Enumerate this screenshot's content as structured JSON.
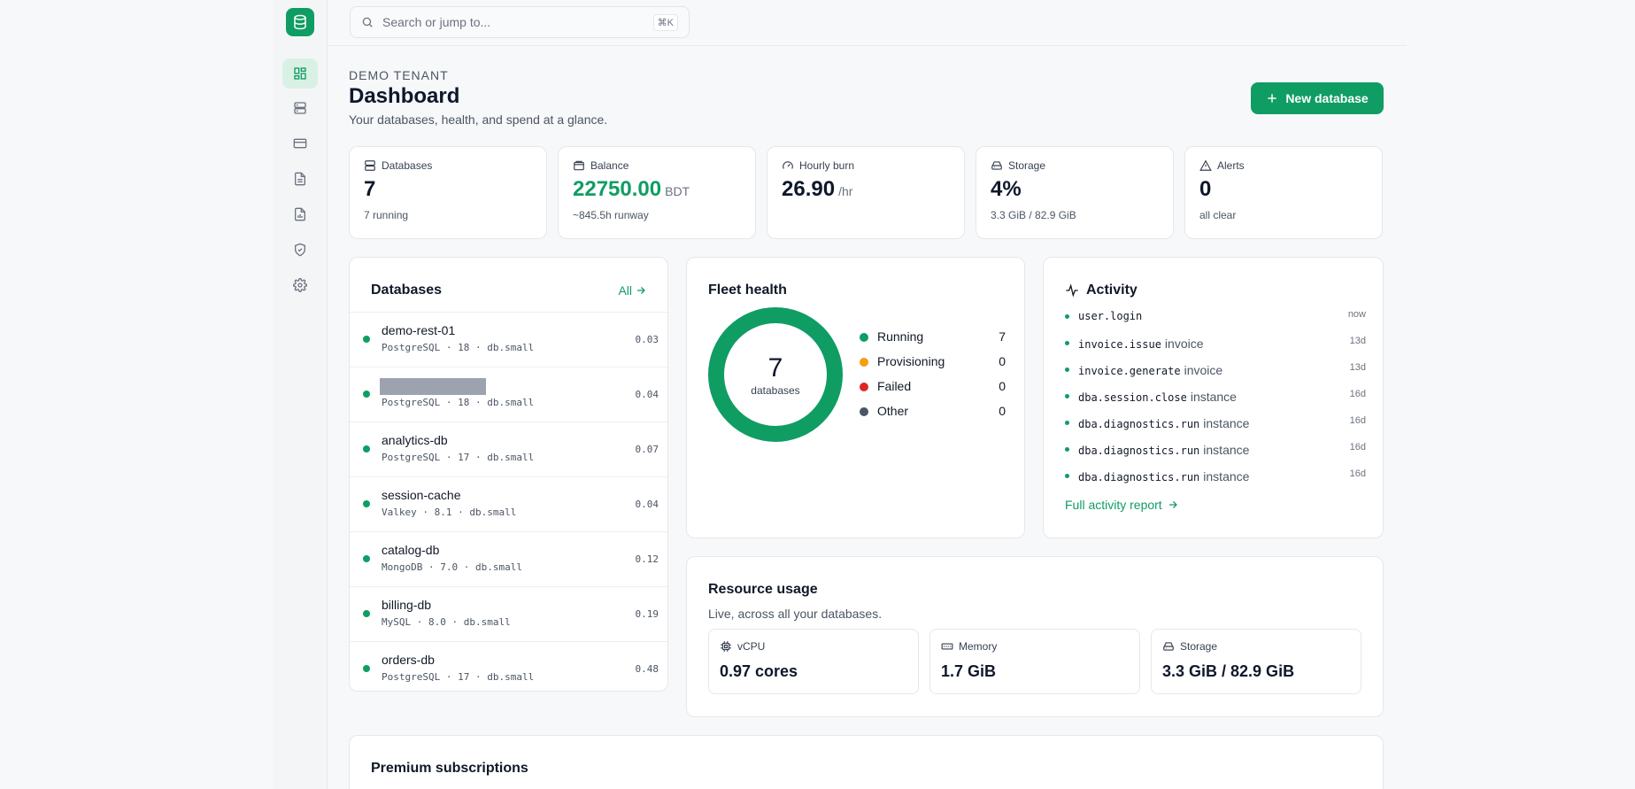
{
  "rail": {
    "items": [
      {
        "icon": "dashboard-icon"
      },
      {
        "icon": "databases-icon"
      },
      {
        "icon": "billing-icon"
      },
      {
        "icon": "documents-icon"
      },
      {
        "icon": "reports-icon"
      },
      {
        "icon": "security-icon"
      },
      {
        "icon": "settings-icon"
      }
    ]
  },
  "search": {
    "placeholder": "Search or jump to...",
    "shortcut": "⌘K"
  },
  "header": {
    "tenant": "DEMO TENANT",
    "title": "Dashboard",
    "subtitle": "Your databases, health, and spend at a glance.",
    "new_button": "New database"
  },
  "stats": [
    {
      "label": "Databases",
      "value": "7",
      "unit": "",
      "sub": "7 running",
      "icon": "databases-icon"
    },
    {
      "label": "Balance",
      "value": "22750.00",
      "unit": "BDT",
      "sub": "~845.5h runway",
      "icon": "wallet-icon"
    },
    {
      "label": "Hourly burn",
      "value": "26.90",
      "unit": "/hr",
      "sub": "",
      "icon": "gauge-icon"
    },
    {
      "label": "Storage",
      "value": "4%",
      "unit": "",
      "sub": "3.3 GiB / 82.9 GiB",
      "icon": "storage-icon"
    },
    {
      "label": "Alerts",
      "value": "0",
      "unit": "",
      "sub": "all clear",
      "icon": "alert-icon"
    }
  ],
  "databases": {
    "title": "Databases",
    "all_link": "All",
    "rows": [
      {
        "name": "demo-rest-01",
        "meta": "PostgreSQL · 18 · db.small",
        "cost": "0.03",
        "redacted": false
      },
      {
        "name": "",
        "meta": "PostgreSQL · 18 · db.small",
        "cost": "0.04",
        "redacted": true
      },
      {
        "name": "analytics-db",
        "meta": "PostgreSQL · 17 · db.small",
        "cost": "0.07",
        "redacted": false
      },
      {
        "name": "session-cache",
        "meta": "Valkey · 8.1 · db.small",
        "cost": "0.04",
        "redacted": false
      },
      {
        "name": "catalog-db",
        "meta": "MongoDB · 7.0 · db.small",
        "cost": "0.12",
        "redacted": false
      },
      {
        "name": "billing-db",
        "meta": "MySQL · 8.0 · db.small",
        "cost": "0.19",
        "redacted": false
      },
      {
        "name": "orders-db",
        "meta": "PostgreSQL · 17 · db.small",
        "cost": "0.48",
        "redacted": false
      }
    ]
  },
  "fleet": {
    "title": "Fleet health",
    "total": "7",
    "total_label": "databases",
    "legend": [
      {
        "label": "Running",
        "value": "7",
        "color": "#0f9d64"
      },
      {
        "label": "Provisioning",
        "value": "0",
        "color": "#f59e0b"
      },
      {
        "label": "Failed",
        "value": "0",
        "color": "#dc2626"
      },
      {
        "label": "Other",
        "value": "0",
        "color": "#4b5563"
      }
    ]
  },
  "activity": {
    "title": "Activity",
    "items": [
      {
        "code": "user.login",
        "target": "",
        "time": "now"
      },
      {
        "code": "invoice.issue",
        "target": "invoice",
        "time": "13d"
      },
      {
        "code": "invoice.generate",
        "target": "invoice",
        "time": "13d"
      },
      {
        "code": "dba.session.close",
        "target": "instance",
        "time": "16d"
      },
      {
        "code": "dba.diagnostics.run",
        "target": "instance",
        "time": "16d"
      },
      {
        "code": "dba.diagnostics.run",
        "target": "instance",
        "time": "16d"
      },
      {
        "code": "dba.diagnostics.run",
        "target": "instance",
        "time": "16d"
      }
    ],
    "full_link": "Full activity report"
  },
  "resource": {
    "title": "Resource usage",
    "subtitle": "Live, across all your databases.",
    "boxes": [
      {
        "label": "vCPU",
        "value": "0.97 cores",
        "icon": "cpu-icon"
      },
      {
        "label": "Memory",
        "value": "1.7 GiB",
        "icon": "memory-icon"
      },
      {
        "label": "Storage",
        "value": "3.3 GiB / 82.9 GiB",
        "icon": "storage-icon"
      }
    ]
  },
  "premium": {
    "title": "Premium subscriptions"
  },
  "colors": {
    "accent": "#0f9d64",
    "accent_light": "#d9f1e5"
  }
}
